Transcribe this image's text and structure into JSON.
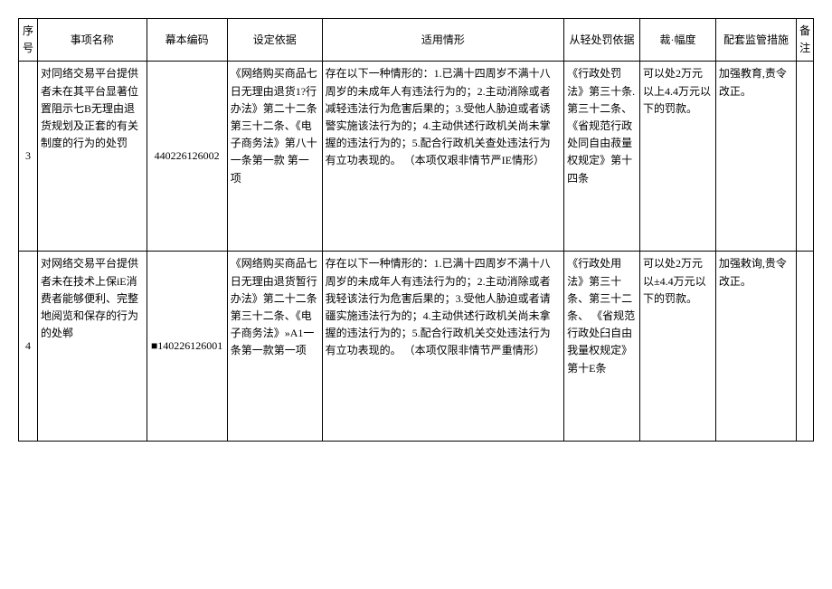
{
  "table": {
    "columns": [
      "序号",
      "事项名称",
      "幕本编码",
      "设定依据",
      "适用情形",
      "从轻处罚依据",
      "裁·幅度",
      "配套监管措施",
      "备注"
    ],
    "rows": [
      {
        "seq": "3",
        "name": "对同络交易平台提供者未在其平台显著位置阻示七B无理由退货规划及正套的有关制度的行为的处罚",
        "code": "440226126002",
        "basis": "《网络购买商品七日无理由退货1?行办法》第二十二条第三十二条、《电子商务法》第八十一条第一款\n第一项",
        "situation": "存在以下一种情形的：1.已满十四周岁不满十八周岁的未成年人有违法行为的；2.主动消除或者减轻违法行为危害后果的；3.受他人胁迫或者诱警实施该法行为的；4.主动供述行政机关尚未掌握的违法行为的；5.配合行政机关查处违法行为有立功表现的。\n（本项仅艰非情节严IE情形）",
        "lenient": "《行政处罚法》第三十条.第三十二条、\n《省规范行政处同自由菽量权规定》第十四条",
        "range": "可以处2万元以上4.4万元以下的罚款。",
        "measure": "加强教育,责令改正。",
        "remark": ""
      },
      {
        "seq": "4",
        "name": "对网络交易平台提供者未在技术上保iE消费者能够便利、完整地阅览和保存的行为的处郸",
        "code": "■140226126001",
        "basis": "《网络购买商品七日无理由退货暂行办法》第二十二条第三十二条、《电子商务法》»A1一条第一款第一项",
        "situation": "存在以下一种情形的：1.已满十四周岁不满十八周岁的未成年人有违法行为的；2.主动消除或者我轻该法行为危害后果的；3.受他人胁迫或者请疆实施违法行为的；4.主动供述行政机关尚未拿握的违法行为的；5.配合行政机关交处违法行为有立功表现的。\n（本项仅限非情节严重情形）",
        "lenient": "《行政处用法》第三十条、第三十二条、\n《省规范行政处臼自由我量权规定》第十E条",
        "range": "可以处2万元以±4.4万元以下的罚款。",
        "measure": "加强敕询,贵令改正。",
        "remark": ""
      }
    ]
  }
}
